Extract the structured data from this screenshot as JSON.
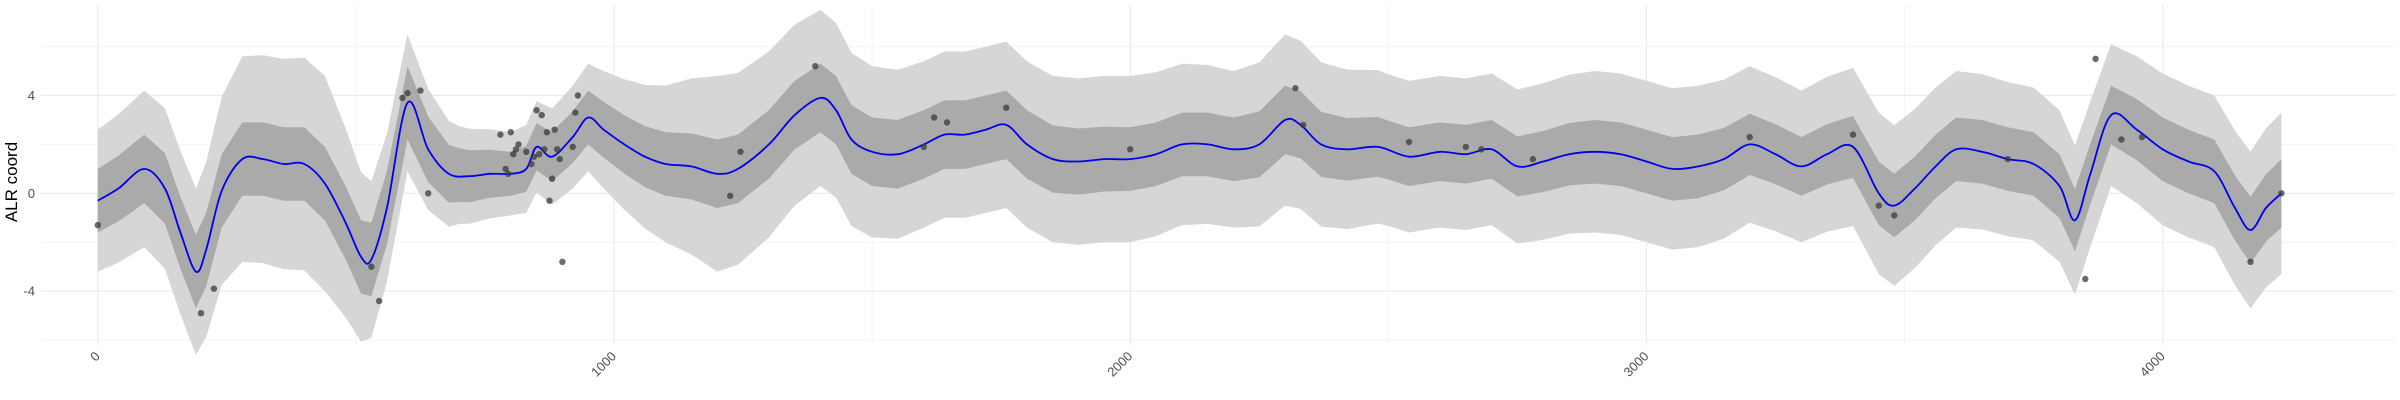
{
  "chart_data": {
    "type": "line",
    "title": "",
    "xlabel": "",
    "ylabel": "ALR coord",
    "xlim": [
      -110,
      4450
    ],
    "ylim": [
      -6.2,
      7.7
    ],
    "xticks": [
      0,
      1000,
      2000,
      3000,
      4000
    ],
    "xtick_labels": [
      "0",
      "1000",
      "2000",
      "3000",
      "4000"
    ],
    "yticks": [
      -4,
      0,
      4
    ],
    "ytick_labels": [
      "-4",
      "0",
      "4"
    ],
    "grid": true,
    "legend": "none",
    "colors": {
      "mean_line": "#0000ee",
      "inner_band": "#aaaaaa",
      "outer_band": "#d6d6d6",
      "points": "#3a3a3a",
      "grid": "#ebebeb"
    },
    "series": [
      {
        "kind": "mean",
        "x": [
          0,
          40,
          90,
          130,
          160,
          190,
          210,
          240,
          280,
          320,
          360,
          400,
          440,
          480,
          510,
          530,
          560,
          600,
          640,
          680,
          720,
          760,
          800,
          830,
          850,
          880,
          920,
          950,
          980,
          1020,
          1060,
          1100,
          1150,
          1200,
          1240,
          1300,
          1350,
          1400,
          1430,
          1460,
          1500,
          1550,
          1600,
          1640,
          1680,
          1720,
          1760,
          1800,
          1850,
          1900,
          1950,
          2000,
          2050,
          2100,
          2150,
          2200,
          2250,
          2300,
          2330,
          2370,
          2420,
          2480,
          2540,
          2600,
          2650,
          2700,
          2750,
          2800,
          2850,
          2900,
          2950,
          3000,
          3050,
          3100,
          3150,
          3200,
          3250,
          3300,
          3350,
          3400,
          3450,
          3480,
          3520,
          3560,
          3600,
          3650,
          3700,
          3750,
          3800,
          3830,
          3860,
          3900,
          3950,
          4000,
          4050,
          4100,
          4140,
          4170,
          4200,
          4230
        ],
        "y": [
          -0.3,
          0.2,
          1.0,
          0.2,
          -1.6,
          -3.2,
          -2.3,
          0.1,
          1.4,
          1.4,
          1.2,
          1.2,
          0.4,
          -1.2,
          -2.6,
          -2.7,
          -0.6,
          3.7,
          1.8,
          0.8,
          0.7,
          0.8,
          0.8,
          1.0,
          1.9,
          1.5,
          2.3,
          3.1,
          2.6,
          2.0,
          1.5,
          1.2,
          1.1,
          0.8,
          1.0,
          2.0,
          3.2,
          3.9,
          3.4,
          2.2,
          1.7,
          1.6,
          2.0,
          2.4,
          2.4,
          2.6,
          2.8,
          2.0,
          1.4,
          1.3,
          1.4,
          1.4,
          1.6,
          2.0,
          2.0,
          1.8,
          2.0,
          3.0,
          2.8,
          2.0,
          1.8,
          1.9,
          1.5,
          1.7,
          1.6,
          1.8,
          1.1,
          1.3,
          1.6,
          1.7,
          1.6,
          1.3,
          1.0,
          1.1,
          1.4,
          2.0,
          1.6,
          1.1,
          1.6,
          1.9,
          0.0,
          -0.5,
          0.2,
          1.1,
          1.8,
          1.7,
          1.4,
          1.2,
          0.3,
          -1.1,
          0.8,
          3.2,
          2.6,
          1.8,
          1.3,
          0.9,
          -0.6,
          -1.5,
          -0.6,
          0.0
        ]
      },
      {
        "kind": "inner-band-halfwidth",
        "x": [
          0,
          90,
          190,
          280,
          440,
          530,
          600,
          700,
          800,
          950,
          1100,
          1200,
          1400,
          1600,
          1800,
          2000,
          2200,
          2300,
          2500,
          2700,
          2900,
          3100,
          3300,
          3450,
          3600,
          3800,
          3900,
          4000,
          4100,
          4230
        ],
        "y": [
          1.3,
          1.4,
          1.5,
          1.5,
          1.5,
          1.5,
          1.5,
          1.1,
          0.9,
          1.1,
          1.3,
          1.4,
          1.4,
          1.4,
          1.4,
          1.3,
          1.3,
          1.4,
          1.2,
          1.2,
          1.3,
          1.3,
          1.2,
          1.3,
          1.3,
          1.3,
          1.2,
          1.3,
          1.3,
          1.4
        ]
      },
      {
        "kind": "outer-band-halfwidth",
        "x": [
          0,
          90,
          190,
          280,
          440,
          530,
          600,
          700,
          800,
          950,
          1100,
          1200,
          1400,
          1600,
          1800,
          2000,
          2200,
          2300,
          2500,
          2700,
          2900,
          3100,
          3300,
          3450,
          3600,
          3800,
          3900,
          4000,
          4100,
          4230
        ],
        "y": [
          2.9,
          3.2,
          3.4,
          4.2,
          4.4,
          3.2,
          2.8,
          2.0,
          1.7,
          2.2,
          3.2,
          4.0,
          3.6,
          3.4,
          3.4,
          3.4,
          3.2,
          3.5,
          3.1,
          3.1,
          3.3,
          3.3,
          3.1,
          3.3,
          3.2,
          3.1,
          2.9,
          3.1,
          3.1,
          3.3
        ]
      },
      {
        "kind": "observations",
        "points": [
          [
            0,
            -1.3
          ],
          [
            200,
            -4.9
          ],
          [
            225,
            -3.9
          ],
          [
            530,
            -3.0
          ],
          [
            545,
            -4.4
          ],
          [
            590,
            3.9
          ],
          [
            600,
            4.1
          ],
          [
            625,
            4.2
          ],
          [
            640,
            0.0
          ],
          [
            780,
            2.4
          ],
          [
            790,
            1.0
          ],
          [
            795,
            0.8
          ],
          [
            800,
            2.5
          ],
          [
            805,
            1.6
          ],
          [
            810,
            1.8
          ],
          [
            815,
            2.0
          ],
          [
            830,
            1.7
          ],
          [
            840,
            1.2
          ],
          [
            845,
            1.5
          ],
          [
            850,
            3.4
          ],
          [
            855,
            1.6
          ],
          [
            860,
            3.2
          ],
          [
            865,
            1.8
          ],
          [
            870,
            2.5
          ],
          [
            875,
            -0.3
          ],
          [
            880,
            0.6
          ],
          [
            885,
            2.6
          ],
          [
            890,
            1.8
          ],
          [
            895,
            1.4
          ],
          [
            900,
            -2.8
          ],
          [
            920,
            1.9
          ],
          [
            925,
            3.3
          ],
          [
            930,
            4.0
          ],
          [
            1225,
            -0.1
          ],
          [
            1245,
            1.7
          ],
          [
            1390,
            5.2
          ],
          [
            1600,
            1.9
          ],
          [
            1620,
            3.1
          ],
          [
            1645,
            2.9
          ],
          [
            1760,
            3.5
          ],
          [
            2000,
            1.8
          ],
          [
            2320,
            4.3
          ],
          [
            2335,
            2.8
          ],
          [
            2540,
            2.1
          ],
          [
            2650,
            1.9
          ],
          [
            2680,
            1.8
          ],
          [
            2780,
            1.4
          ],
          [
            3200,
            2.3
          ],
          [
            3400,
            2.4
          ],
          [
            3450,
            -0.5
          ],
          [
            3480,
            -0.9
          ],
          [
            3700,
            1.4
          ],
          [
            3850,
            -3.5
          ],
          [
            3870,
            5.5
          ],
          [
            3920,
            2.2
          ],
          [
            3960,
            2.3
          ],
          [
            4170,
            -2.8
          ],
          [
            4230,
            0.0
          ]
        ]
      }
    ]
  }
}
